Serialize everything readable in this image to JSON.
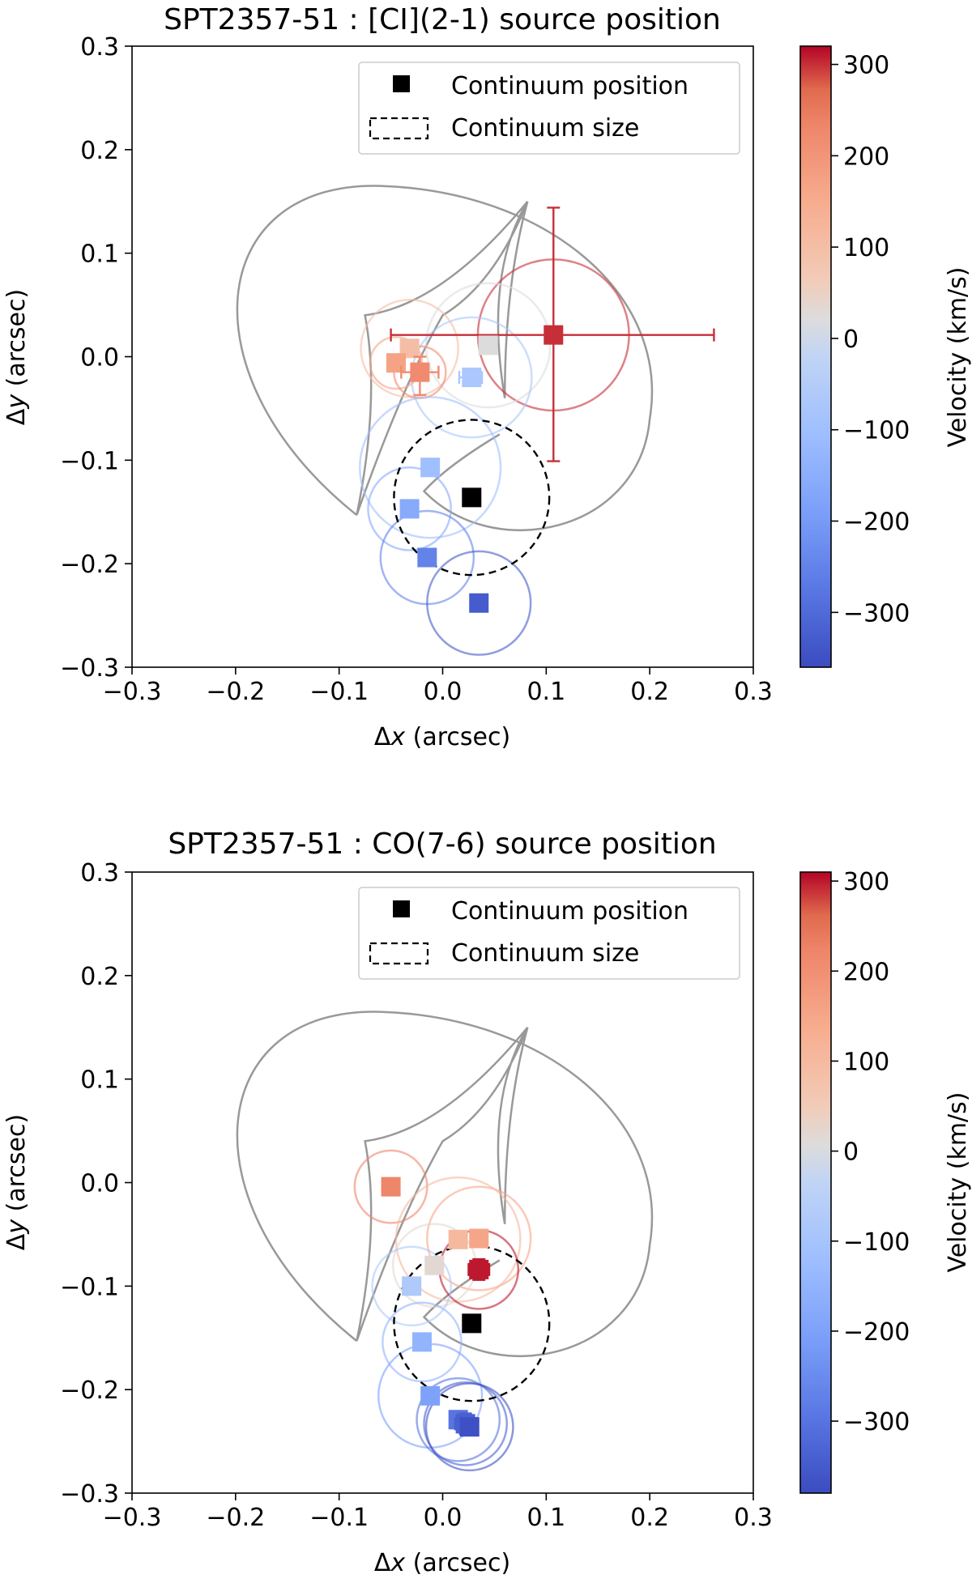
{
  "chart_data": [
    {
      "type": "scatter",
      "title": "SPT2357-51 : [CI](2-1) source position",
      "xlabel_pre": "Δ",
      "xlabel_var": "x",
      "xlabel_post": " (arcsec)",
      "ylabel_pre": "Δ",
      "ylabel_var": "y",
      "ylabel_post": " (arcsec)",
      "xlim": [
        -0.3,
        0.3
      ],
      "ylim": [
        -0.3,
        0.3
      ],
      "xticks": [
        "−0.3",
        "−0.2",
        "−0.1",
        "0.0",
        "0.1",
        "0.2",
        "0.3"
      ],
      "yticks": [
        "0.3",
        "0.2",
        "0.1",
        "0.0",
        "−0.1",
        "−0.2",
        "−0.3"
      ],
      "legend": {
        "position": "upper right",
        "marker_label": "Continuum position",
        "circle_label": "Continuum size"
      },
      "colorbar": {
        "label": "Velocity (km/s)",
        "vmin": -360,
        "vmax": 320,
        "ticks": [
          "300",
          "200",
          "100",
          "0",
          "−100",
          "−200",
          "−300"
        ],
        "tick_values": [
          300,
          200,
          100,
          0,
          -100,
          -200,
          -300
        ]
      },
      "continuum": {
        "x": 0.028,
        "y": -0.136,
        "size": 0.075
      },
      "points": [
        {
          "v": 300,
          "x": 0.107,
          "y": 0.021,
          "r": 0.073,
          "xerr": [
            0.157,
            0.155
          ],
          "yerr": [
            0.122,
            0.123
          ]
        },
        {
          "v": 20,
          "x": 0.044,
          "y": 0.011,
          "r": 0.06
        },
        {
          "v": -70,
          "x": 0.028,
          "y": -0.02,
          "r": 0.058,
          "xerr": [
            0.012,
            0.01
          ]
        },
        {
          "v": 100,
          "x": -0.032,
          "y": 0.008,
          "r": 0.047
        },
        {
          "v": 170,
          "x": -0.045,
          "y": -0.006,
          "r": 0.025
        },
        {
          "v": 220,
          "x": -0.022,
          "y": -0.015,
          "r": 0.025,
          "xerr": [
            0.018,
            0.018
          ],
          "yerr": [
            0.022,
            0.015
          ]
        },
        {
          "v": -100,
          "x": -0.012,
          "y": -0.107,
          "r": 0.068
        },
        {
          "v": -160,
          "x": -0.032,
          "y": -0.147,
          "r": 0.04
        },
        {
          "v": -250,
          "x": -0.015,
          "y": -0.194,
          "r": 0.045
        },
        {
          "v": -330,
          "x": 0.035,
          "y": -0.238,
          "r": 0.05
        }
      ]
    },
    {
      "type": "scatter",
      "title": "SPT2357-51 : CO(7-6) source position",
      "xlabel_pre": "Δ",
      "xlabel_var": "x",
      "xlabel_post": " (arcsec)",
      "ylabel_pre": "Δ",
      "ylabel_var": "y",
      "ylabel_post": " (arcsec)",
      "xlim": [
        -0.3,
        0.3
      ],
      "ylim": [
        -0.3,
        0.3
      ],
      "xticks": [
        "−0.3",
        "−0.2",
        "−0.1",
        "0.0",
        "0.1",
        "0.2",
        "0.3"
      ],
      "yticks": [
        "0.3",
        "0.2",
        "0.1",
        "0.0",
        "−0.1",
        "−0.2",
        "−0.3"
      ],
      "legend": {
        "position": "upper right",
        "marker_label": "Continuum position",
        "circle_label": "Continuum size"
      },
      "colorbar": {
        "label": "Velocity (km/s)",
        "vmin": -380,
        "vmax": 310,
        "ticks": [
          "300",
          "200",
          "100",
          "0",
          "−100",
          "−200",
          "−300"
        ],
        "tick_values": [
          300,
          200,
          100,
          0,
          -100,
          -200,
          -300
        ]
      },
      "continuum": {
        "x": 0.028,
        "y": -0.136,
        "size": 0.075
      },
      "points": [
        {
          "v": 220,
          "x": -0.05,
          "y": -0.004,
          "r": 0.035
        },
        {
          "v": 150,
          "x": 0.035,
          "y": -0.054,
          "r": 0.05
        },
        {
          "v": 100,
          "x": 0.015,
          "y": -0.055,
          "r": 0.06
        },
        {
          "v": 20,
          "x": -0.008,
          "y": -0.08,
          "r": 0.04
        },
        {
          "v": 300,
          "x": 0.035,
          "y": -0.084,
          "r": 0.038,
          "xerr": [
            0.01,
            0.01
          ],
          "yerr": [
            0.01,
            0.01
          ]
        },
        {
          "v": -80,
          "x": -0.03,
          "y": -0.1,
          "r": 0.038
        },
        {
          "v": -150,
          "x": -0.02,
          "y": -0.154,
          "r": 0.038
        },
        {
          "v": -200,
          "x": -0.012,
          "y": -0.206,
          "r": 0.05
        },
        {
          "v": -300,
          "x": 0.015,
          "y": -0.229,
          "r": 0.04
        },
        {
          "v": -340,
          "x": 0.022,
          "y": -0.233,
          "r": 0.04,
          "xerr": [
            0.01,
            0.01
          ],
          "yerr": [
            0.01,
            0.01
          ]
        },
        {
          "v": -370,
          "x": 0.026,
          "y": -0.236,
          "r": 0.042
        }
      ]
    }
  ]
}
